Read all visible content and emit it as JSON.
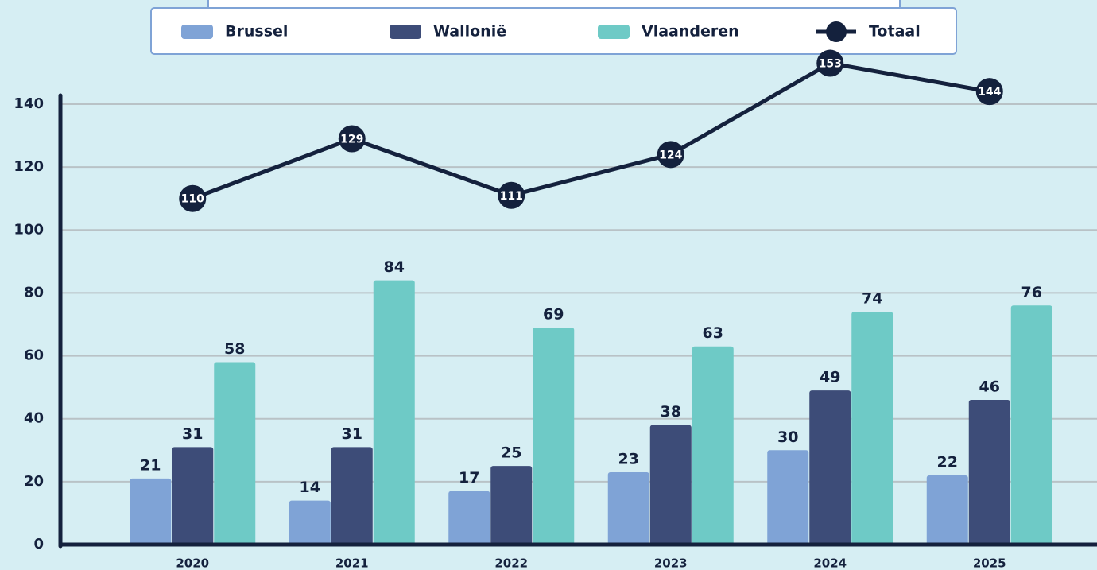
{
  "chart_data": {
    "type": "bar",
    "categories": [
      "2020",
      "2021",
      "2022",
      "2023",
      "2024",
      "2025"
    ],
    "series": [
      {
        "name": "Brussel",
        "color": "#7fa3d6",
        "values": [
          21,
          14,
          17,
          23,
          30,
          22
        ]
      },
      {
        "name": "Wallonië",
        "color": "#3d4c78",
        "values": [
          31,
          31,
          25,
          38,
          49,
          46
        ]
      },
      {
        "name": "Vlaanderen",
        "color": "#6ecac6",
        "values": [
          58,
          84,
          69,
          63,
          74,
          76
        ]
      },
      {
        "name": "Totaal",
        "color": "#14213d",
        "type": "line",
        "values": [
          110,
          129,
          111,
          124,
          153,
          144
        ]
      }
    ],
    "ylim": [
      0,
      140
    ],
    "yticks": [
      0,
      20,
      40,
      60,
      80,
      100,
      120,
      140
    ],
    "grid": true,
    "legend": "top"
  }
}
